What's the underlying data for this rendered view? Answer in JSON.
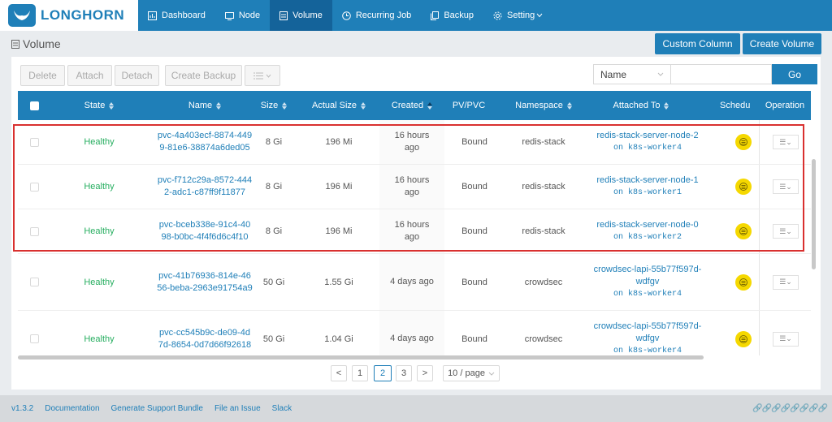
{
  "brand": {
    "name": "LONGHORN",
    "logo_icon": "longhorn-logo-icon"
  },
  "nav": [
    {
      "label": "Dashboard",
      "icon": "dashboard-icon",
      "active": false
    },
    {
      "label": "Node",
      "icon": "node-icon",
      "active": false
    },
    {
      "label": "Volume",
      "icon": "volume-icon",
      "active": true
    },
    {
      "label": "Recurring Job",
      "icon": "clock-icon",
      "active": false
    },
    {
      "label": "Backup",
      "icon": "backup-icon",
      "active": false
    },
    {
      "label": "Setting",
      "icon": "gear-icon",
      "active": false
    }
  ],
  "page": {
    "title": "Volume"
  },
  "header_buttons": {
    "custom_column": "Custom Column",
    "create_volume": "Create Volume"
  },
  "toolbar": {
    "delete": "Delete",
    "attach": "Attach",
    "detach": "Detach",
    "create_backup": "Create Backup"
  },
  "filter": {
    "field": "Name",
    "query": "",
    "go": "Go"
  },
  "columns": {
    "state": "State",
    "name": "Name",
    "size": "Size",
    "actual_size": "Actual Size",
    "created": "Created",
    "pvpvc": "PV/PVC",
    "namespace": "Namespace",
    "attached_to": "Attached To",
    "schedule": "Schedu",
    "operation": "Operation"
  },
  "rows": [
    {
      "state": "Healthy",
      "name1": "pvc-4a403ecf-8874-449",
      "name2": "9-81e6-38874a6ded05",
      "size": "8 Gi",
      "actual": "196 Mi",
      "created1": "16 hours",
      "created2": "ago",
      "pv": "Bound",
      "ns": "redis-stack",
      "att1": "redis-stack-server-node-2",
      "att2": "",
      "node": "on k8s-worker4"
    },
    {
      "state": "Healthy",
      "name1": "pvc-f712c29a-8572-444",
      "name2": "2-adc1-c87ff9f11877",
      "size": "8 Gi",
      "actual": "196 Mi",
      "created1": "16 hours",
      "created2": "ago",
      "pv": "Bound",
      "ns": "redis-stack",
      "att1": "redis-stack-server-node-1",
      "att2": "",
      "node": "on k8s-worker1"
    },
    {
      "state": "Healthy",
      "name1": "pvc-bceb338e-91c4-40",
      "name2": "98-b0bc-4f4f6d6c4f10",
      "size": "8 Gi",
      "actual": "196 Mi",
      "created1": "16 hours",
      "created2": "ago",
      "pv": "Bound",
      "ns": "redis-stack",
      "att1": "redis-stack-server-node-0",
      "att2": "",
      "node": "on k8s-worker2"
    },
    {
      "state": "Healthy",
      "name1": "pvc-41b76936-814e-46",
      "name2": "56-beba-2963e91754a9",
      "size": "50 Gi",
      "actual": "1.55 Gi",
      "created1": "4 days ago",
      "created2": "",
      "pv": "Bound",
      "ns": "crowdsec",
      "att1": "crowdsec-lapi-55b77f597d-",
      "att2": "wdfgv",
      "node": "on k8s-worker4"
    },
    {
      "state": "Healthy",
      "name1": "pvc-cc545b9c-de09-4d",
      "name2": "7d-8654-0d7d66f92618",
      "size": "50 Gi",
      "actual": "1.04 Gi",
      "created1": "4 days ago",
      "created2": "",
      "pv": "Bound",
      "ns": "crowdsec",
      "att1": "crowdsec-lapi-55b77f597d-",
      "att2": "wdfgv",
      "node": "on k8s-worker4"
    }
  ],
  "pagination": {
    "prev": "<",
    "pages": [
      "1",
      "2",
      "3"
    ],
    "current": "2",
    "next": ">",
    "page_size": "10 / page"
  },
  "footer": {
    "version": "v1.3.2",
    "documentation": "Documentation",
    "support": "Generate Support Bundle",
    "issue": "File an Issue",
    "slack": "Slack"
  },
  "colors": {
    "primary": "#1f7fb8",
    "healthy": "#27ae60",
    "highlight": "#d9302f",
    "schedule": "#f5d800"
  }
}
